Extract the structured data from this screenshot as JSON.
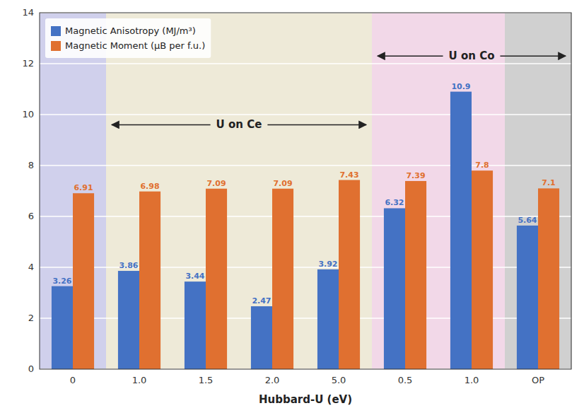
{
  "chart_data": {
    "type": "bar",
    "xlabel": "Hubbard-U (eV)",
    "categories": [
      "0",
      "1.0",
      "1.5",
      "2.0",
      "5.0",
      "0.5",
      "1.0",
      "OP"
    ],
    "series": [
      {
        "name": "Magnetic Anisotropy (MJ/m³)",
        "color": "#4472C4",
        "values": [
          3.26,
          3.86,
          3.44,
          2.47,
          3.92,
          6.32,
          10.9,
          5.64
        ]
      },
      {
        "name": "Magnetic Moment (μB per f.u.)",
        "color": "#E07030",
        "values": [
          6.91,
          6.98,
          7.09,
          7.09,
          7.43,
          7.39,
          7.8,
          7.1
        ]
      }
    ],
    "band_colors": [
      "#D0D0EC",
      "#EEEAD8",
      "#EEEAD8",
      "#EEEAD8",
      "#EEEAD8",
      "#F2D8E8",
      "#F2D8E8",
      "#D0D0D0"
    ],
    "annotations": [
      {
        "text": "U on Ce",
        "y": 9.6,
        "span": [
          1,
          4
        ]
      },
      {
        "text": "U on Co",
        "y": 12.3,
        "span": [
          5,
          7
        ]
      }
    ],
    "ylim": [
      0,
      14
    ],
    "yticks": [
      0,
      2,
      4,
      6,
      8,
      10,
      12,
      14
    ],
    "grid": true,
    "legend": "upper left",
    "data_labels": true
  }
}
